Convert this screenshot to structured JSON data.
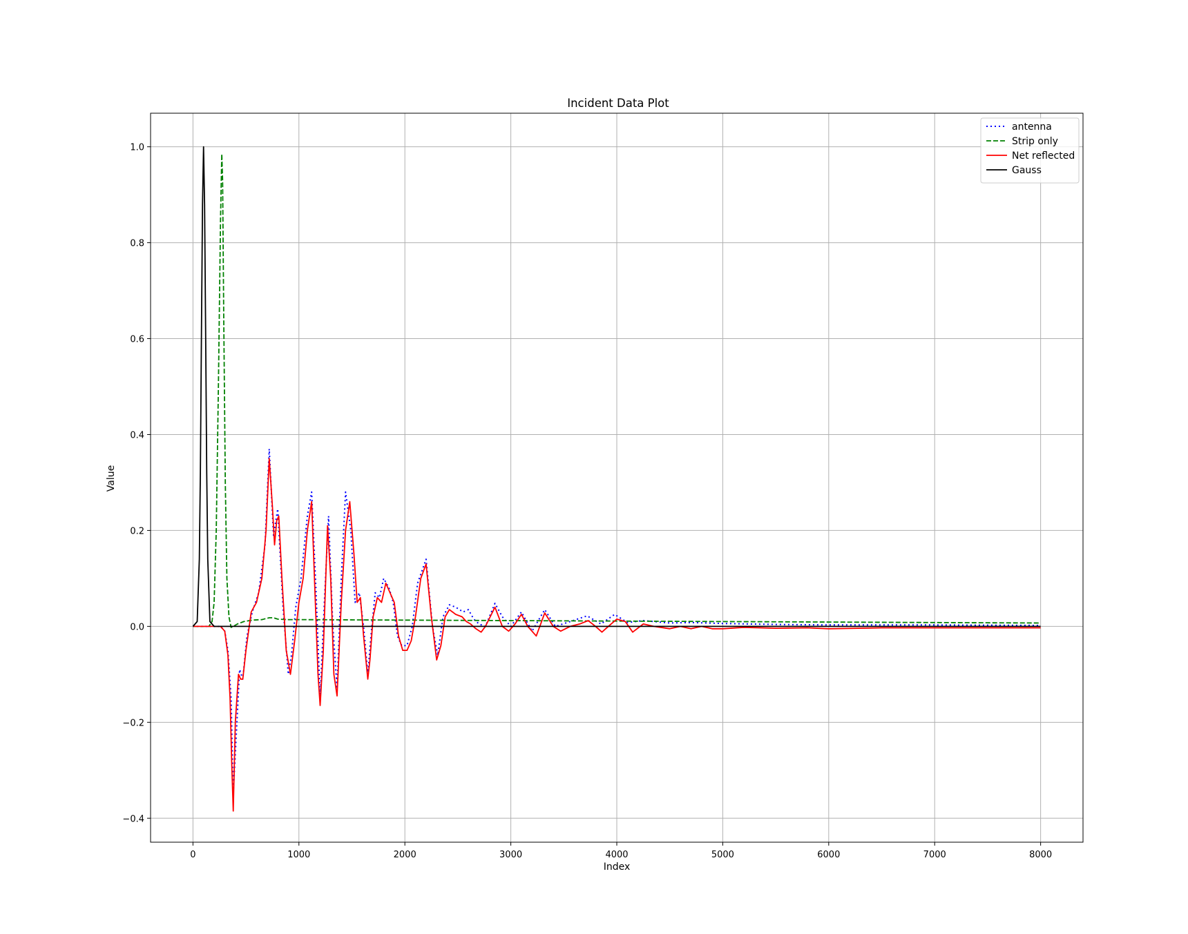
{
  "chart_data": {
    "type": "line",
    "title": "Incident Data Plot",
    "xlabel": "Index",
    "ylabel": "Value",
    "xlim": [
      -400,
      8400
    ],
    "ylim": [
      -0.45,
      1.07
    ],
    "xticks": [
      0,
      1000,
      2000,
      3000,
      4000,
      5000,
      6000,
      7000,
      8000
    ],
    "yticks": [
      -0.4,
      -0.2,
      0.0,
      0.2,
      0.4,
      0.6,
      0.8,
      1.0
    ],
    "xtick_labels": [
      "0",
      "1000",
      "2000",
      "3000",
      "4000",
      "5000",
      "6000",
      "7000",
      "8000"
    ],
    "ytick_labels": [
      "−0.4",
      "−0.2",
      "0.0",
      "0.2",
      "0.4",
      "0.6",
      "0.8",
      "1.0"
    ],
    "grid": true,
    "legend_position": "top-right",
    "series": [
      {
        "name": "antenna",
        "color": "#0000ff",
        "style": "dotted",
        "x": [
          0,
          200,
          260,
          300,
          330,
          360,
          380,
          410,
          440,
          470,
          510,
          560,
          620,
          680,
          720,
          760,
          800,
          850,
          900,
          930,
          970,
          1020,
          1080,
          1120,
          1160,
          1200,
          1240,
          1280,
          1320,
          1360,
          1400,
          1440,
          1490,
          1530,
          1570,
          1610,
          1650,
          1680,
          1720,
          1760,
          1800,
          1850,
          1890,
          1930,
          1970,
          2020,
          2070,
          2120,
          2200,
          2260,
          2310,
          2360,
          2420,
          2480,
          2550,
          2600,
          2650,
          2700,
          2760,
          2850,
          2920,
          3000,
          3100,
          3200,
          3320,
          3420,
          3560,
          3720,
          3850,
          3980,
          4100,
          4250,
          4500,
          4700,
          5000,
          5500,
          6000,
          7000,
          8000
        ],
        "y": [
          0,
          0,
          0.0,
          -0.01,
          -0.05,
          -0.15,
          -0.35,
          -0.22,
          -0.09,
          -0.11,
          -0.02,
          0.03,
          0.07,
          0.17,
          0.37,
          0.19,
          0.245,
          0.04,
          -0.1,
          -0.06,
          0.04,
          0.1,
          0.23,
          0.28,
          0.08,
          -0.15,
          0.05,
          0.23,
          0.0,
          -0.13,
          0.1,
          0.28,
          0.2,
          0.05,
          0.07,
          0.0,
          -0.1,
          -0.02,
          0.07,
          0.06,
          0.1,
          0.08,
          0.05,
          -0.02,
          -0.04,
          -0.04,
          0.0,
          0.09,
          0.14,
          0.0,
          -0.06,
          0.02,
          0.045,
          0.04,
          0.03,
          0.035,
          0.015,
          0.005,
          0.0,
          0.048,
          0.02,
          0.0,
          0.03,
          -0.01,
          0.035,
          0.0,
          0.01,
          0.022,
          0.005,
          0.025,
          0.008,
          0.012,
          0.007,
          0.008,
          0.006,
          0.004,
          0.003,
          0.003,
          0.002
        ]
      },
      {
        "name": "Strip only",
        "color": "#008000",
        "style": "dashed",
        "x": [
          0,
          150,
          180,
          200,
          220,
          240,
          260,
          272,
          280,
          290,
          305,
          320,
          340,
          360,
          380,
          420,
          480,
          560,
          650,
          720,
          760,
          800,
          900,
          1000,
          2000,
          3000,
          4000,
          5000,
          6000,
          7000,
          8000
        ],
        "y": [
          0,
          0,
          0.01,
          0.05,
          0.2,
          0.5,
          0.85,
          0.985,
          0.93,
          0.65,
          0.3,
          0.1,
          0.02,
          -0.002,
          0.0,
          0.005,
          0.01,
          0.013,
          0.014,
          0.018,
          0.018,
          0.015,
          0.014,
          0.014,
          0.013,
          0.012,
          0.011,
          0.01,
          0.009,
          0.008,
          0.007
        ]
      },
      {
        "name": "Net reflected",
        "color": "#ff0000",
        "style": "solid",
        "x": [
          0,
          200,
          260,
          300,
          330,
          350,
          365,
          380,
          400,
          430,
          450,
          470,
          500,
          550,
          600,
          650,
          690,
          720,
          750,
          770,
          790,
          810,
          840,
          880,
          920,
          960,
          1000,
          1040,
          1080,
          1120,
          1150,
          1180,
          1200,
          1230,
          1270,
          1300,
          1330,
          1360,
          1400,
          1440,
          1480,
          1520,
          1550,
          1580,
          1610,
          1650,
          1670,
          1700,
          1740,
          1780,
          1820,
          1860,
          1900,
          1940,
          1980,
          2020,
          2060,
          2100,
          2150,
          2200,
          2250,
          2300,
          2340,
          2380,
          2420,
          2480,
          2540,
          2580,
          2620,
          2670,
          2720,
          2760,
          2850,
          2920,
          2980,
          3040,
          3100,
          3160,
          3240,
          3320,
          3400,
          3470,
          3560,
          3650,
          3730,
          3800,
          3860,
          3920,
          4000,
          4080,
          4150,
          4250,
          4350,
          4500,
          4600,
          4700,
          4800,
          4900,
          5000,
          5200,
          5500,
          5800,
          6000,
          6500,
          7000,
          7500,
          8000
        ],
        "y": [
          0,
          0,
          0.0,
          -0.01,
          -0.06,
          -0.15,
          -0.28,
          -0.385,
          -0.2,
          -0.1,
          -0.11,
          -0.11,
          -0.05,
          0.03,
          0.05,
          0.1,
          0.2,
          0.35,
          0.25,
          0.17,
          0.22,
          0.23,
          0.1,
          -0.05,
          -0.1,
          -0.03,
          0.05,
          0.1,
          0.2,
          0.26,
          0.08,
          -0.1,
          -0.165,
          -0.05,
          0.21,
          0.1,
          -0.1,
          -0.145,
          0.05,
          0.2,
          0.26,
          0.15,
          0.05,
          0.06,
          -0.02,
          -0.11,
          -0.07,
          0.02,
          0.06,
          0.05,
          0.09,
          0.07,
          0.05,
          -0.02,
          -0.05,
          -0.05,
          -0.03,
          0.02,
          0.1,
          0.13,
          0.02,
          -0.07,
          -0.04,
          0.02,
          0.035,
          0.025,
          0.02,
          0.01,
          0.005,
          -0.005,
          -0.012,
          0.0,
          0.04,
          0.0,
          -0.01,
          0.005,
          0.025,
          0.0,
          -0.02,
          0.028,
          0.0,
          -0.01,
          0.0,
          0.005,
          0.012,
          0.0,
          -0.012,
          0.0,
          0.015,
          0.01,
          -0.012,
          0.005,
          0.0,
          -0.005,
          0.0,
          -0.005,
          0.0,
          -0.005,
          -0.005,
          -0.002,
          -0.004,
          -0.003,
          -0.005,
          -0.003,
          -0.003,
          -0.003,
          -0.003
        ]
      },
      {
        "name": "Gauss",
        "color": "#000000",
        "style": "solid",
        "x": [
          0,
          40,
          60,
          70,
          80,
          90,
          100,
          110,
          120,
          130,
          140,
          160,
          200,
          8000
        ],
        "y": [
          0,
          0.01,
          0.14,
          0.32,
          0.6,
          0.88,
          1.0,
          0.88,
          0.6,
          0.32,
          0.14,
          0.01,
          0,
          0
        ]
      }
    ]
  }
}
